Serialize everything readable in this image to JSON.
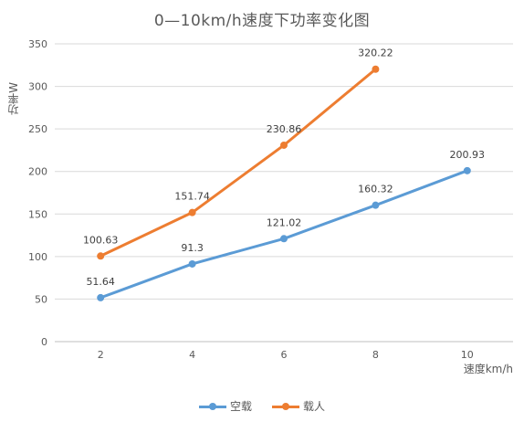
{
  "chart_data": {
    "type": "line",
    "title": "0—10km/h速度下功率变化图",
    "xlabel": "速度km/h",
    "ylabel": "功率W",
    "categories": [
      "2",
      "4",
      "6",
      "8",
      "10"
    ],
    "ylim": [
      0,
      350
    ],
    "yticks": [
      0,
      50,
      100,
      150,
      200,
      250,
      300,
      350
    ],
    "grid": true,
    "legend_position": "bottom",
    "series": [
      {
        "name": "空载",
        "color": "#5b9bd5",
        "values": [
          51.64,
          91.3,
          121.02,
          160.32,
          200.93
        ],
        "labels": [
          "51.64",
          "91.3",
          "121.02",
          "160.32",
          "200.93"
        ]
      },
      {
        "name": "载人",
        "color": "#ed7d31",
        "values": [
          100.63,
          151.74,
          230.86,
          320.22,
          null
        ],
        "labels": [
          "100.63",
          "151.74",
          "230.86",
          "320.22",
          ""
        ]
      }
    ]
  }
}
